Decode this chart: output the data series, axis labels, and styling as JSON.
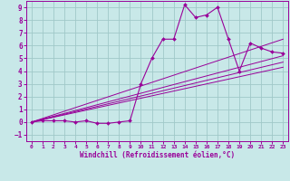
{
  "xlabel": "Windchill (Refroidissement éolien,°C)",
  "xlim": [
    -0.5,
    23.5
  ],
  "ylim": [
    -1.5,
    9.5
  ],
  "xticks": [
    0,
    1,
    2,
    3,
    4,
    5,
    6,
    7,
    8,
    9,
    10,
    11,
    12,
    13,
    14,
    15,
    16,
    17,
    18,
    19,
    20,
    21,
    22,
    23
  ],
  "yticks": [
    -1,
    0,
    1,
    2,
    3,
    4,
    5,
    6,
    7,
    8,
    9
  ],
  "bg_color": "#c8e8e8",
  "grid_color": "#a0c8c8",
  "line_color": "#990099",
  "curve_x": [
    0,
    1,
    2,
    3,
    4,
    5,
    6,
    7,
    8,
    9,
    10,
    11,
    12,
    13,
    14,
    15,
    16,
    17,
    18,
    19,
    20,
    21,
    22,
    23
  ],
  "curve_y": [
    0.0,
    0.1,
    0.1,
    0.1,
    0.0,
    0.1,
    -0.1,
    -0.1,
    0.0,
    0.1,
    3.0,
    5.0,
    6.5,
    6.5,
    9.2,
    8.2,
    8.4,
    9.0,
    6.5,
    4.0,
    6.2,
    5.8,
    5.5,
    5.4
  ],
  "ref_lines": [
    {
      "x": [
        0,
        23
      ],
      "y": [
        0.0,
        5.2
      ]
    },
    {
      "x": [
        0,
        23
      ],
      "y": [
        0.0,
        4.7
      ]
    },
    {
      "x": [
        0,
        23
      ],
      "y": [
        0.0,
        4.3
      ]
    },
    {
      "x": [
        0,
        23
      ],
      "y": [
        0.0,
        6.5
      ]
    }
  ]
}
